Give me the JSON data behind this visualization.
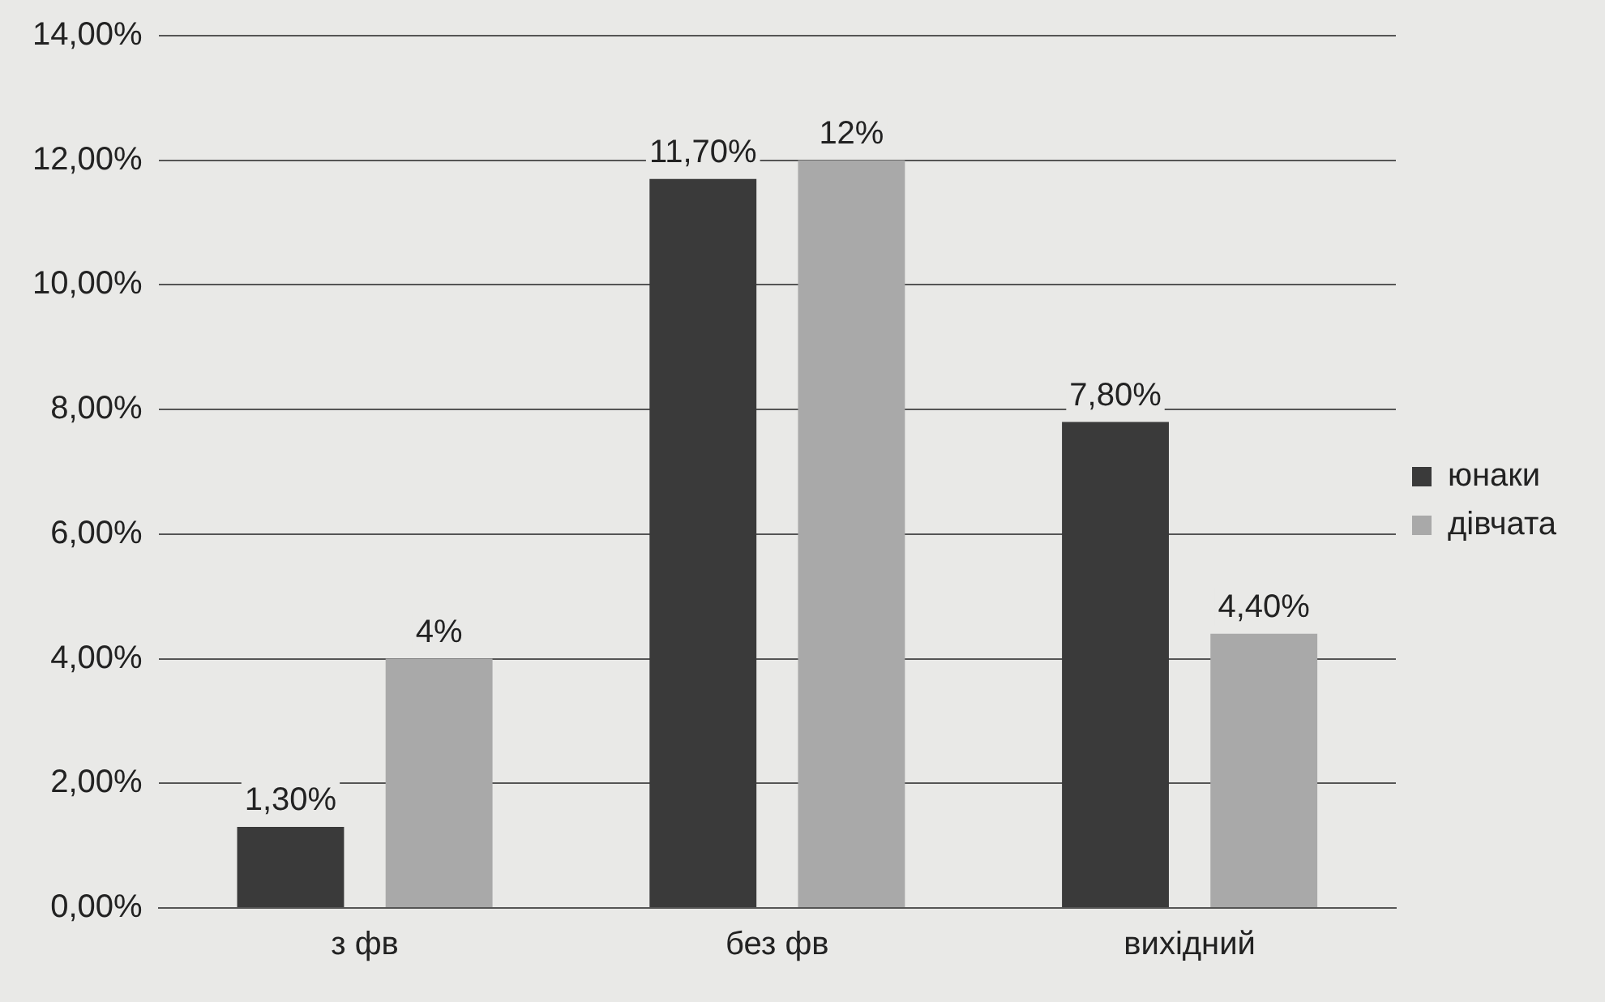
{
  "chart_data": {
    "type": "bar",
    "categories": [
      "з фв",
      "без фв",
      "вихідний"
    ],
    "series": [
      {
        "name": "юнаки",
        "color": "#3a3a3a",
        "values": [
          1.3,
          11.7,
          7.8
        ],
        "value_labels": [
          "1,30%",
          "11,70%",
          "7,80%"
        ]
      },
      {
        "name": "дівчата",
        "color": "#a9a9a9",
        "values": [
          4,
          12,
          4.4
        ],
        "value_labels": [
          "4%",
          "12%",
          "4,40%"
        ]
      }
    ],
    "ylim": [
      0,
      14
    ],
    "yticks": [
      {
        "value": 0,
        "label": "0,00%"
      },
      {
        "value": 2,
        "label": "2,00%"
      },
      {
        "value": 4,
        "label": "4,00%"
      },
      {
        "value": 6,
        "label": "6,00%"
      },
      {
        "value": 8,
        "label": "8,00%"
      },
      {
        "value": 10,
        "label": "10,00%"
      },
      {
        "value": 12,
        "label": "12,00%"
      },
      {
        "value": 14,
        "label": "14,00%"
      }
    ],
    "grid": "y",
    "legend": "right"
  }
}
